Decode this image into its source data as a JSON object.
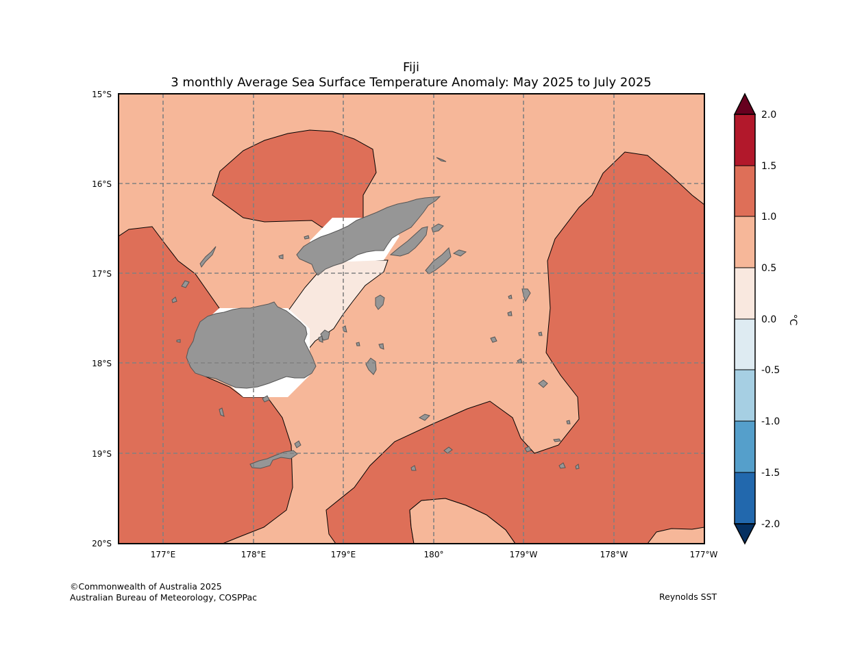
{
  "title": {
    "region": "Fiji",
    "subtitle": "3 monthly Average Sea Surface Temperature Anomaly: May 2025 to July 2025"
  },
  "map": {
    "x_ticks": [
      "177°E",
      "178°E",
      "179°E",
      "180°",
      "179°W",
      "178°W",
      "177°W"
    ],
    "y_ticks": [
      "15°S",
      "16°S",
      "17°S",
      "18°S",
      "19°S",
      "20°S"
    ],
    "land_color": "#969696"
  },
  "colorbar": {
    "unit": "°C",
    "levels": [
      "2.0",
      "1.5",
      "1.0",
      "0.5",
      "0.0",
      "-0.5",
      "-1.0",
      "-1.5",
      "-2.0"
    ],
    "colors": {
      "above_max": "#67001f",
      "1.5_to_2.0": "#b2182b",
      "1.0_to_1.5": "#de6f58",
      "0.5_to_1.0": "#f6b799",
      "0.0_to_0.5": "#f9e8df",
      "-0.5_to_0.0": "#deebf2",
      "-1.0_to_-0.5": "#a6cfe3",
      "-1.5_to_-1.0": "#559fcb",
      "-2.0_to_-1.5": "#2268ad",
      "below_min": "#053061"
    }
  },
  "footer": {
    "copyright": "©Commonwealth of Australia 2025",
    "source": "Australian Bureau of Meteorology, COSPPac",
    "dataset": "Reynolds SST"
  }
}
